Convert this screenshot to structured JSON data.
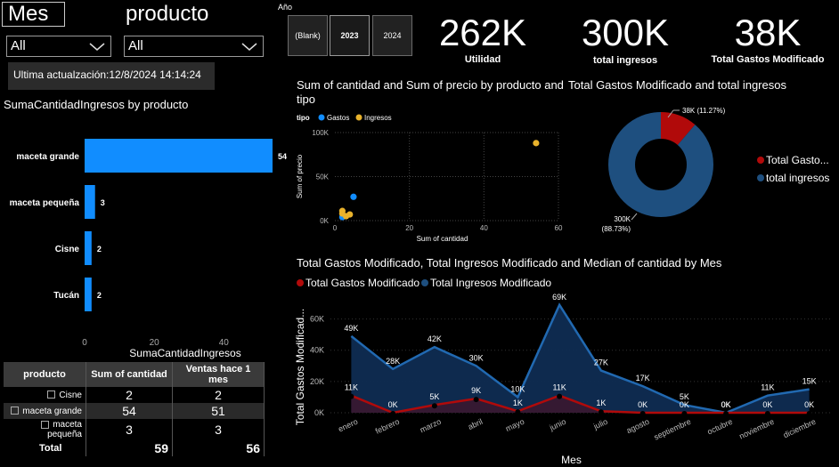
{
  "slicers": {
    "mes": {
      "title": "Mes",
      "value": "All"
    },
    "producto": {
      "title": "producto",
      "value": "All"
    }
  },
  "last_update": "Ultima actualzación:12/8/2024 14:14:24",
  "year_slicer": {
    "title": "Año",
    "options": [
      "(Blank)",
      "2023",
      "2024"
    ],
    "selected": "2023"
  },
  "kpis": [
    {
      "value": "262K",
      "label": "Utilidad"
    },
    {
      "value": "300K",
      "label": "total ingresos"
    },
    {
      "value": "38K",
      "label": "Total Gastos Modificado"
    }
  ],
  "colors": {
    "gastos": "#118DFF",
    "ingresos": "#E8B22C",
    "red": "#B10A0A",
    "navy": "#1E4F7F",
    "bar": "#118DFF"
  },
  "icons": {
    "dropdown": "chevron-down-icon",
    "expand": "expand-icon"
  },
  "table": {
    "headers": [
      "producto",
      "Sum of cantidad",
      "Ventas hace 1 mes"
    ],
    "rows": [
      {
        "producto": "Cisne",
        "cantidad": "2",
        "ventas": "2"
      },
      {
        "producto": "maceta grande",
        "cantidad": "54",
        "ventas": "51"
      },
      {
        "producto": "maceta pequeña",
        "cantidad": "3",
        "ventas": "3"
      }
    ],
    "total": {
      "label": "Total",
      "cantidad": "59",
      "ventas": "56"
    }
  },
  "chart_data": [
    {
      "type": "bar",
      "title": "SumaCantidadIngresos by producto",
      "categories": [
        "maceta grande",
        "maceta pequeña",
        "Cisne",
        "Tucán"
      ],
      "values": [
        54,
        3,
        2,
        2
      ],
      "xlabel": "SumaCantidadIngresos",
      "xlim": [
        0,
        54
      ],
      "xticks": [
        "0",
        "20",
        "40"
      ]
    },
    {
      "type": "scatter",
      "title": "Sum of cantidad and Sum of precio by producto and tipo",
      "legend_title": "tipo",
      "xlabel": "Sum of cantidad",
      "ylabel": "Sum of precio",
      "xlim": [
        0,
        60
      ],
      "ylim": [
        0,
        100000
      ],
      "xticks": [
        "0",
        "20",
        "40",
        "60"
      ],
      "yticks": [
        "0K",
        "50K",
        "100K"
      ],
      "series": [
        {
          "name": "Gastos",
          "points": [
            [
              2,
              4000
            ],
            [
              5,
              27000
            ]
          ]
        },
        {
          "name": "Ingresos",
          "points": [
            [
              54,
              88000
            ],
            [
              2,
              11000
            ],
            [
              3,
              5000
            ],
            [
              4,
              7000
            ],
            [
              2,
              8000
            ]
          ]
        }
      ]
    },
    {
      "type": "pie",
      "title": "Total Gastos Modificado and total ingresos",
      "slices": [
        {
          "name": "Total Gasto...",
          "value": 38,
          "label": "38K (11.27%)"
        },
        {
          "name": "total ingresos",
          "value": 300,
          "label": "300K",
          "sublabel": "(88.73%)"
        }
      ]
    },
    {
      "type": "area",
      "title": "Total Gastos Modificado, Total Ingresos Modificado and Median of cantidad by Mes",
      "xlabel": "Mes",
      "ylabel": "Total Gastos Modificad...",
      "ylim": [
        0,
        70000
      ],
      "yticks": [
        "0K",
        "20K",
        "40K",
        "60K"
      ],
      "categories": [
        "enero",
        "febrero",
        "marzo",
        "abril",
        "mayo",
        "junio",
        "julio",
        "agosto",
        "septiembre",
        "octubre",
        "noviembre",
        "diciembre"
      ],
      "series": [
        {
          "name": "Total Gastos Modificado",
          "values": [
            11000,
            0,
            5000,
            9000,
            1000,
            11000,
            1000,
            0,
            0,
            0,
            0,
            0
          ],
          "labels": [
            "11K",
            "0K",
            "5K",
            "9K",
            "1K",
            "11K",
            "1K",
            "0K",
            "0K",
            "0K",
            "0K",
            "0K"
          ]
        },
        {
          "name": "Total Ingresos Modificado",
          "values": [
            49000,
            28000,
            42000,
            30000,
            10000,
            69000,
            27000,
            17000,
            5000,
            0,
            11000,
            15000
          ],
          "labels": [
            "49K",
            "28K",
            "42K",
            "30K",
            "10K",
            "69K",
            "27K",
            "17K",
            "5K",
            "0K",
            "11K",
            "15K"
          ]
        }
      ]
    }
  ]
}
